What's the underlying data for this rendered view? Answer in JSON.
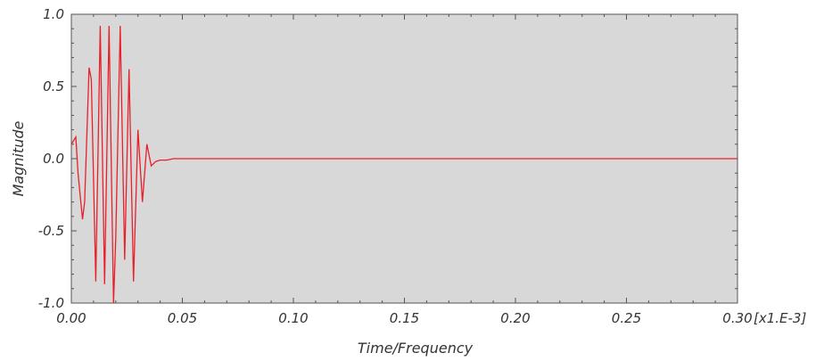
{
  "chart_data": {
    "type": "line",
    "xlabel": "Time/Frequency",
    "ylabel": "Magnitude",
    "x_scale_label": "[x1.E-3]",
    "xlim": [
      0.0,
      0.3
    ],
    "ylim": [
      -1.0,
      1.0
    ],
    "x_ticks": [
      "0.00",
      "0.05",
      "0.10",
      "0.15",
      "0.20",
      "0.25",
      "0.30"
    ],
    "y_ticks": [
      "1.0",
      "0.5",
      "0.0",
      "-0.5",
      "-1.0"
    ],
    "grid": false,
    "plot_background": "#d8d8d8",
    "series": [
      {
        "color": "#e8202a",
        "x": [
          0.0,
          0.002,
          0.003,
          0.005,
          0.006,
          0.008,
          0.009,
          0.011,
          0.013,
          0.015,
          0.017,
          0.019,
          0.02,
          0.022,
          0.024,
          0.026,
          0.028,
          0.03,
          0.032,
          0.034,
          0.036,
          0.038,
          0.04,
          0.043,
          0.046,
          0.05,
          0.06,
          0.1,
          0.15,
          0.2,
          0.25,
          0.3
        ],
        "y": [
          0.1,
          0.15,
          -0.1,
          -0.42,
          -0.3,
          0.63,
          0.55,
          -0.85,
          0.92,
          -0.87,
          0.92,
          -1.0,
          -0.55,
          0.92,
          -0.7,
          0.62,
          -0.85,
          0.2,
          -0.3,
          0.1,
          -0.05,
          -0.02,
          -0.01,
          -0.01,
          0.0,
          0.0,
          0.0,
          0.0,
          0.0,
          0.0,
          0.0,
          0.0
        ]
      }
    ]
  }
}
